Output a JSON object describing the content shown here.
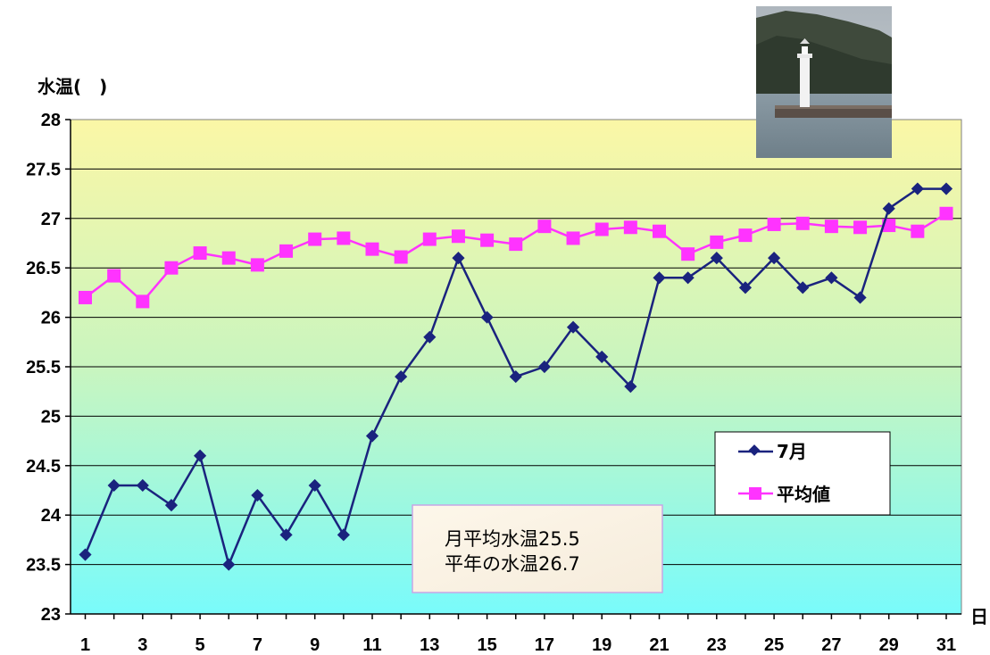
{
  "chart_data": {
    "type": "line",
    "ylabel": "水温(　)",
    "xlabel": "日",
    "ylim": [
      23,
      28
    ],
    "y_ticks": [
      "23",
      "23.5",
      "24",
      "24.5",
      "25",
      "25.5",
      "26",
      "26.5",
      "27",
      "27.5",
      "28"
    ],
    "x": [
      1,
      2,
      3,
      4,
      5,
      6,
      7,
      8,
      9,
      10,
      11,
      12,
      13,
      14,
      15,
      16,
      17,
      18,
      19,
      20,
      21,
      22,
      23,
      24,
      25,
      26,
      27,
      28,
      29,
      30,
      31
    ],
    "x_tick_labels": [
      "1",
      "3",
      "5",
      "7",
      "9",
      "11",
      "13",
      "15",
      "17",
      "19",
      "21",
      "23",
      "25",
      "27",
      "29",
      "31"
    ],
    "grid": "horizontal",
    "legend_position": "right",
    "series": [
      {
        "name": "7月",
        "color": "#1a237e",
        "marker": "diamond",
        "values": [
          23.6,
          24.3,
          24.3,
          24.1,
          24.6,
          23.5,
          24.2,
          23.8,
          24.3,
          23.8,
          24.8,
          25.4,
          25.8,
          26.6,
          26.0,
          25.4,
          25.5,
          25.9,
          25.6,
          25.3,
          26.4,
          26.4,
          26.6,
          26.3,
          26.6,
          26.3,
          26.4,
          26.2,
          27.1,
          27.3,
          27.3
        ]
      },
      {
        "name": "平均値",
        "color": "#ff33ff",
        "marker": "square",
        "values": [
          26.2,
          26.42,
          26.16,
          26.5,
          26.65,
          26.6,
          26.53,
          26.67,
          26.79,
          26.8,
          26.69,
          26.61,
          26.79,
          26.82,
          26.78,
          26.74,
          26.92,
          26.8,
          26.89,
          26.91,
          26.87,
          26.64,
          26.76,
          26.83,
          26.94,
          26.95,
          26.92,
          26.91,
          26.93,
          26.87,
          27.05
        ]
      }
    ],
    "note_lines": [
      "月平均水温25.5",
      "平年の水温26.7"
    ]
  }
}
